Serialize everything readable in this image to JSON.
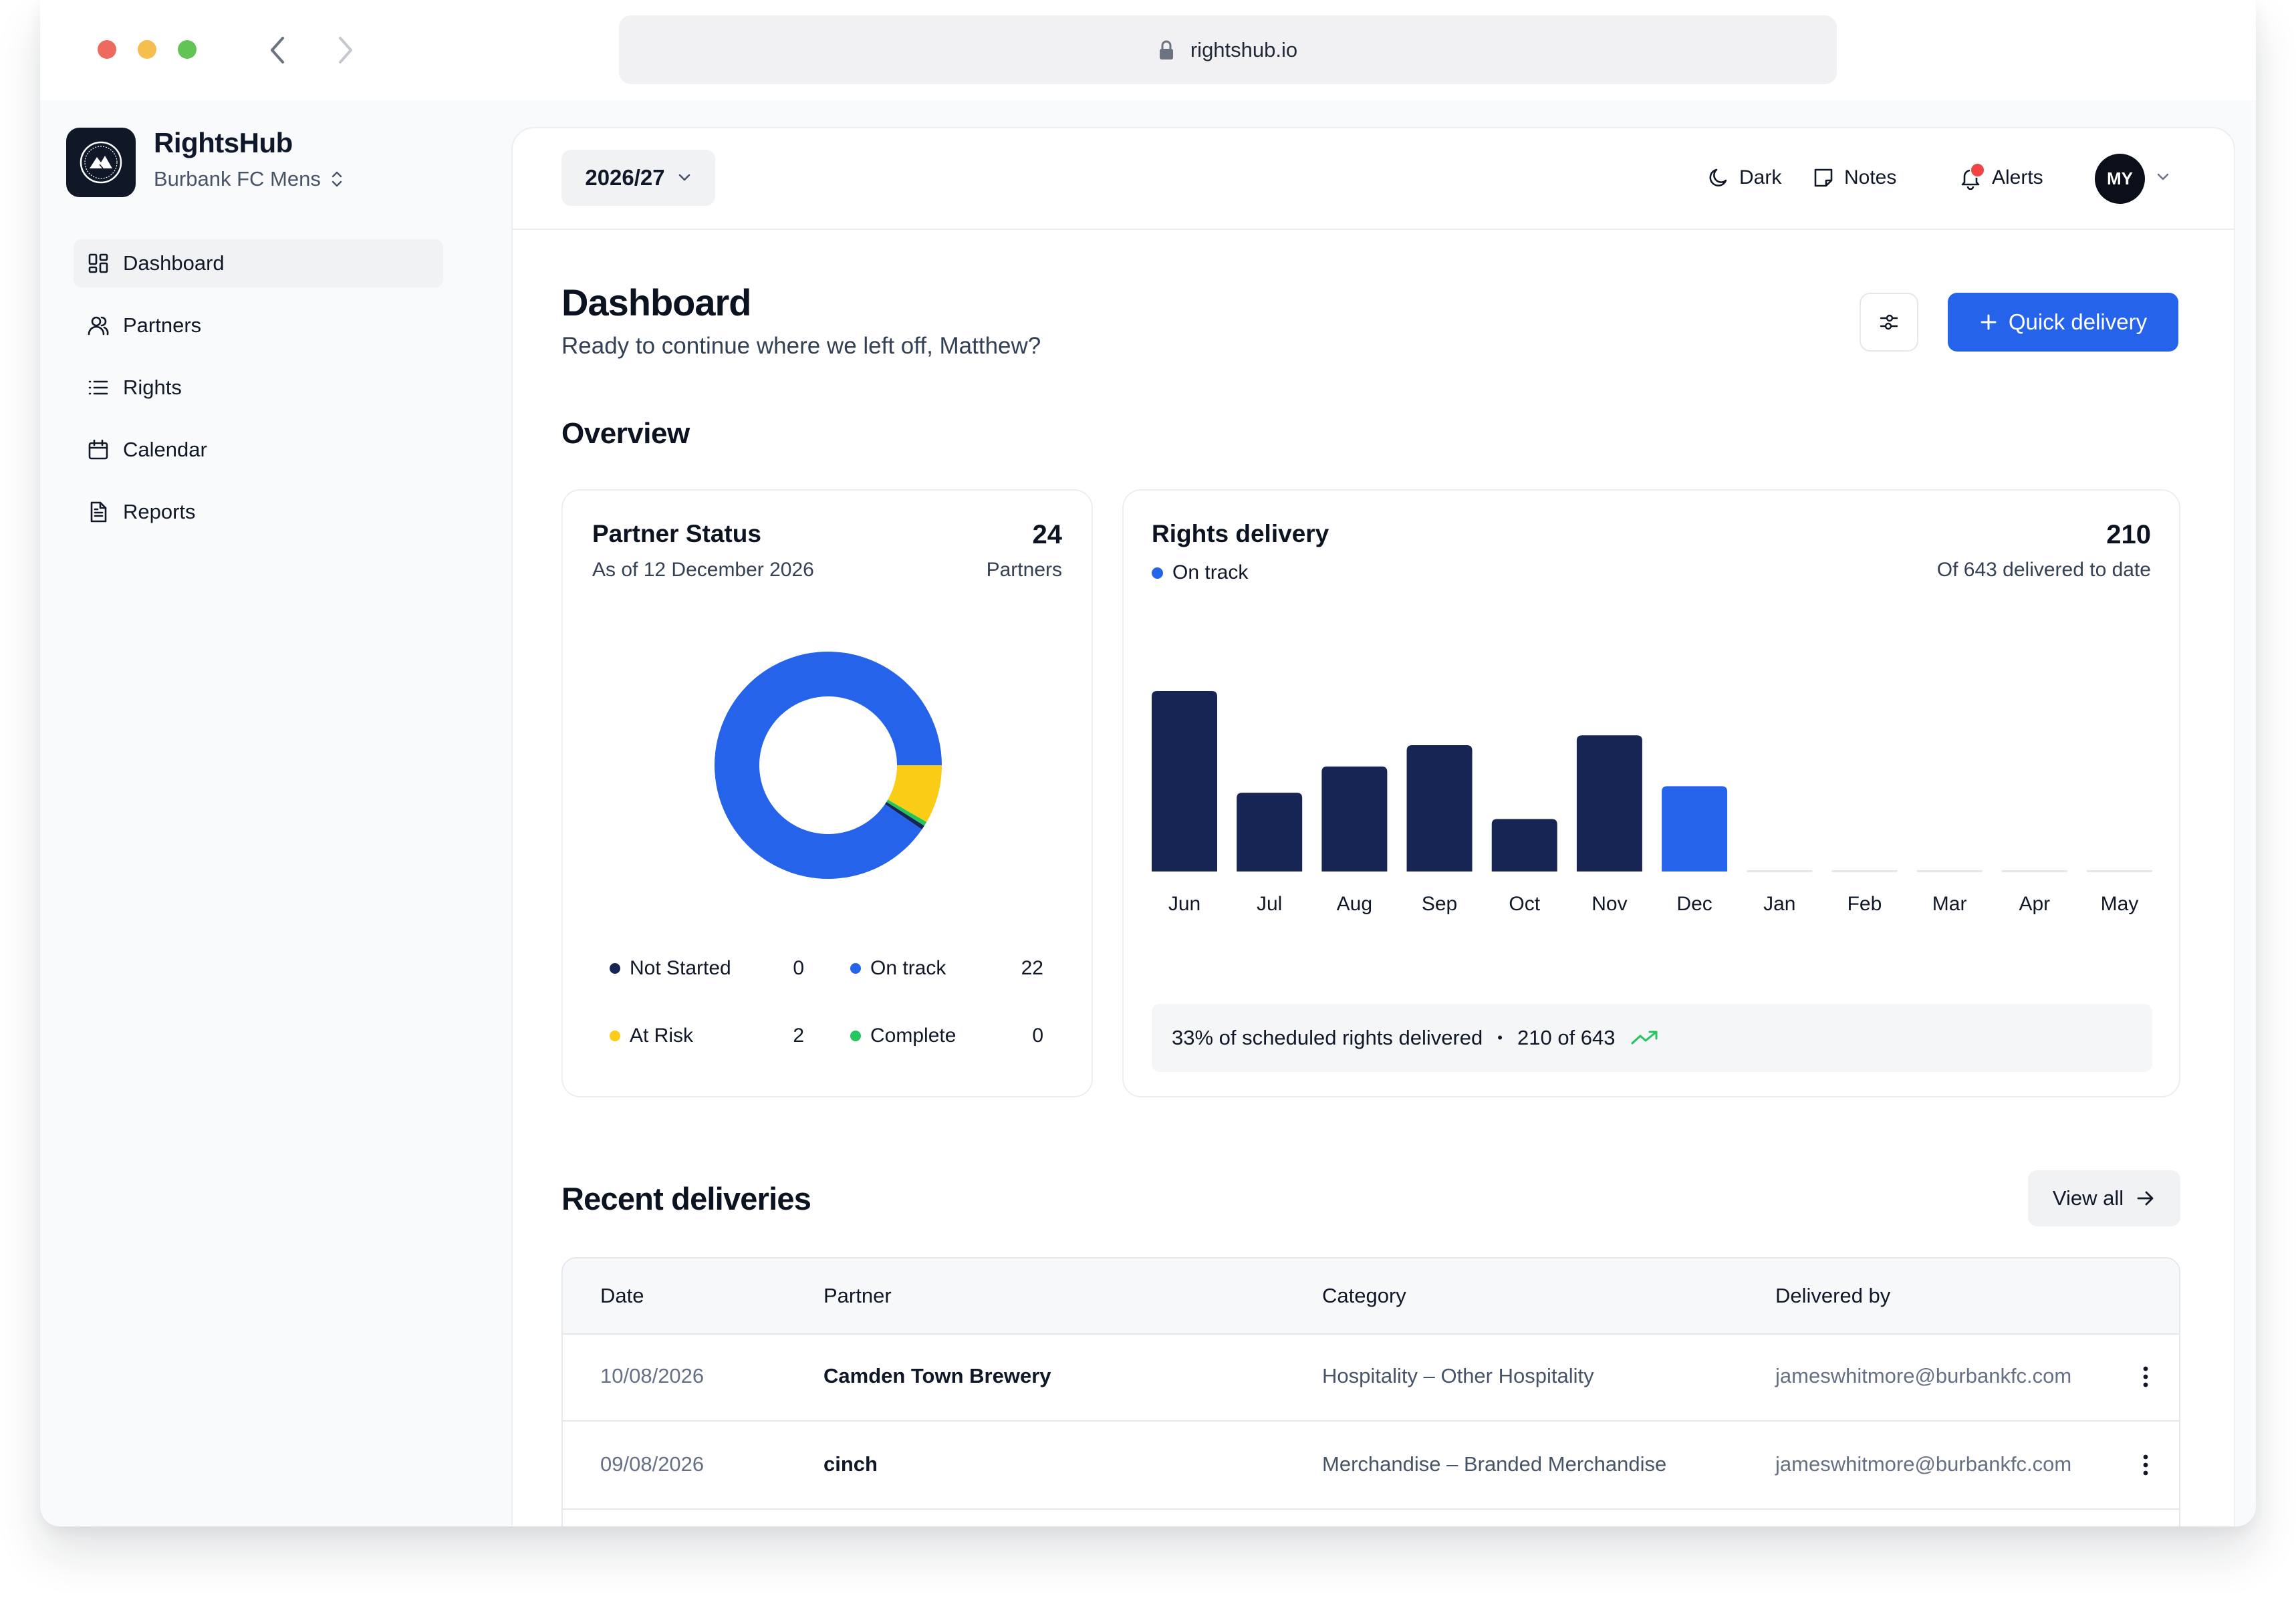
{
  "browser": {
    "url": "rightshub.io",
    "traffic_lights": {
      "close": "#ee6a5f",
      "minimize": "#f5be4f",
      "maximize": "#61c454"
    }
  },
  "sidebar": {
    "brand_name": "RightsHub",
    "team_name": "Burbank FC Mens",
    "items": [
      {
        "label": "Dashboard",
        "icon": "dashboard-icon",
        "active": true
      },
      {
        "label": "Partners",
        "icon": "users-icon"
      },
      {
        "label": "Rights",
        "icon": "list-icon"
      },
      {
        "label": "Calendar",
        "icon": "calendar-icon"
      },
      {
        "label": "Reports",
        "icon": "document-icon"
      }
    ]
  },
  "topbar": {
    "season": "2026/27",
    "dark_label": "Dark",
    "notes_label": "Notes",
    "alerts_label": "Alerts",
    "avatar_initials": "MY",
    "alert_dot_color": "#ef4444"
  },
  "page": {
    "title": "Dashboard",
    "subtitle": "Ready to continue where we left off, Matthew?",
    "quick_delivery_label": "Quick delivery",
    "overview_label": "Overview",
    "accent_color": "#2563eb"
  },
  "partner_status": {
    "title": "Partner Status",
    "subtitle": "As of 12 December 2026",
    "total": "24",
    "total_label": "Partners",
    "legend": [
      {
        "label": "Not Started",
        "value": "0",
        "color": "#172554"
      },
      {
        "label": "On track",
        "value": "22",
        "color": "#2563eb"
      },
      {
        "label": "At Risk",
        "value": "2",
        "color": "#facc15"
      },
      {
        "label": "Complete",
        "value": "0",
        "color": "#22c55e"
      }
    ]
  },
  "rights_delivery": {
    "title": "Rights delivery",
    "status": "On track",
    "status_color": "#2563eb",
    "total": "210",
    "total_label": "Of 643 delivered to date",
    "summary_text": "33% of scheduled rights delivered",
    "summary_count": "210 of 643",
    "bar_color": "#172554",
    "current_color": "#2563eb"
  },
  "chart_data": [
    {
      "type": "pie",
      "variant": "donut",
      "categories": [
        "Not Started",
        "On track",
        "At Risk",
        "Complete"
      ],
      "values": [
        0,
        22,
        2,
        0
      ],
      "colors": [
        "#172554",
        "#2563eb",
        "#facc15",
        "#22c55e"
      ]
    },
    {
      "type": "bar",
      "categories": [
        "Jun",
        "Jul",
        "Aug",
        "Sep",
        "Oct",
        "Nov",
        "Dec",
        "Jan",
        "Feb",
        "Mar",
        "Apr",
        "May"
      ],
      "values": [
        55,
        24,
        32,
        38.5,
        16,
        41.5,
        26,
        0,
        0,
        0,
        0,
        0
      ],
      "highlight_category": "Dec",
      "title": "Rights delivery",
      "xlabel": "",
      "ylabel": "",
      "grid": false
    }
  ],
  "recent": {
    "title": "Recent deliveries",
    "view_all_label": "View all",
    "columns": [
      "Date",
      "Partner",
      "Category",
      "Delivered by"
    ],
    "rows": [
      {
        "date": "10/08/2026",
        "partner": "Camden Town Brewery",
        "category": "Hospitality – Other Hospitality",
        "delivered_by": "jameswhitmore@burbankfc.com"
      },
      {
        "date": "09/08/2026",
        "partner": "cinch",
        "category": "Merchandise – Branded Merchandise",
        "delivered_by": "jameswhitmore@burbankfc.com"
      }
    ]
  }
}
